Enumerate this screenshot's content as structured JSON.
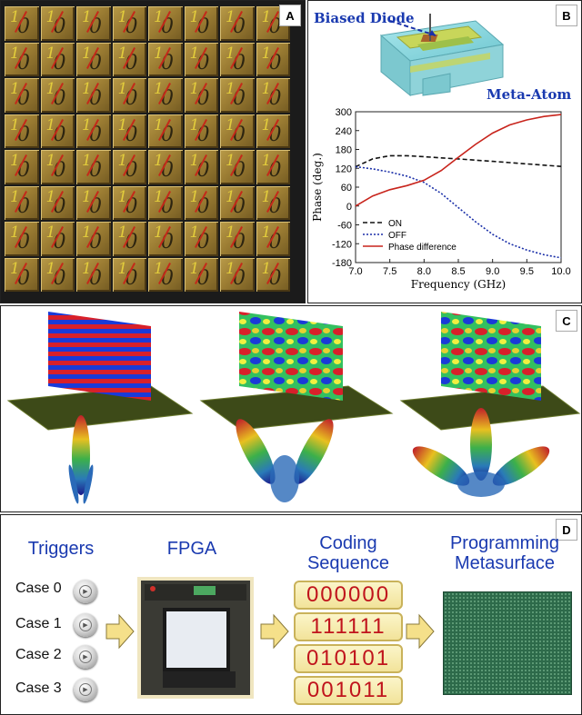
{
  "panel_labels": {
    "a": "A",
    "b": "B",
    "c": "C",
    "d": "D"
  },
  "grid_a": {
    "rows": 8,
    "cols": 8,
    "one": "1",
    "zero": "0"
  },
  "diode_label": "Biased Diode",
  "atom_label": "Meta-Atom",
  "chart_data": {
    "type": "line",
    "xlabel": "Frequency (GHz)",
    "ylabel": "Phase (deg.)",
    "xlim": [
      7.0,
      10.0
    ],
    "ylim": [
      -180,
      300
    ],
    "xticks": [
      "7.0",
      "7.5",
      "8.0",
      "8.5",
      "9.0",
      "9.5",
      "10.0"
    ],
    "yticks": [
      "300",
      "240",
      "180",
      "120",
      "60",
      "0",
      "-60",
      "-120",
      "-180"
    ],
    "legend_position": "bottom-left",
    "grid": false,
    "x": [
      7.0,
      7.25,
      7.5,
      7.75,
      8.0,
      8.25,
      8.5,
      8.75,
      9.0,
      9.25,
      9.5,
      9.75,
      10.0
    ],
    "series": [
      {
        "name": "ON",
        "color": "#111111",
        "dash": "5,3",
        "values": [
          125,
          150,
          160,
          160,
          157,
          153,
          150,
          146,
          142,
          138,
          134,
          130,
          126
        ]
      },
      {
        "name": "OFF",
        "color": "#1a2fa8",
        "dash": "2,2",
        "values": [
          125,
          118,
          108,
          95,
          75,
          40,
          -5,
          -50,
          -90,
          -120,
          -140,
          -155,
          -165
        ]
      },
      {
        "name": "Phase difference",
        "color": "#c8241c",
        "dash": "",
        "values": [
          0,
          32,
          52,
          65,
          82,
          113,
          155,
          196,
          232,
          258,
          274,
          285,
          291
        ]
      }
    ]
  },
  "d": {
    "triggers": "Triggers",
    "fpga": "FPGA",
    "coding": "Coding\nSequence",
    "programming": "Programming\nMetasurface",
    "cases": [
      "Case 0",
      "Case 1",
      "Case 2",
      "Case 3"
    ],
    "codes": [
      "000000",
      "111111",
      "010101",
      "001011"
    ]
  },
  "colors": {
    "title_blue": "#1a3ab0",
    "code_red": "#c0141c",
    "arrow_fill": "#f5e08a",
    "arrow_stroke": "#8a7a3a"
  }
}
